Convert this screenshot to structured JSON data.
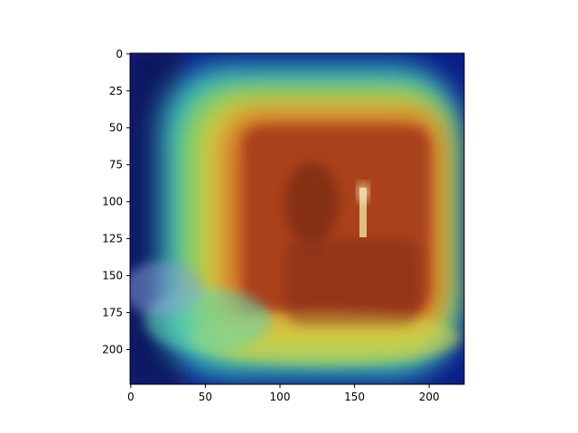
{
  "chart_data": {
    "type": "heatmap",
    "title": "",
    "xlabel": "",
    "ylabel": "",
    "xlim": [
      0,
      224
    ],
    "ylim": [
      224,
      0
    ],
    "grid": false,
    "x_ticks": [
      0,
      50,
      100,
      150,
      200
    ],
    "y_ticks": [
      0,
      25,
      50,
      75,
      100,
      125,
      150,
      175,
      200
    ],
    "colormap": "jet",
    "overlay_description_hidden": true,
    "heatmap_peak_region": {
      "x": [
        75,
        195
      ],
      "y": [
        40,
        180
      ]
    },
    "colors": {
      "low": "#0a1a8a",
      "mid": "#2fd3c0",
      "high_yellow": "#e8d23a",
      "peak": "#b83a1c"
    }
  }
}
